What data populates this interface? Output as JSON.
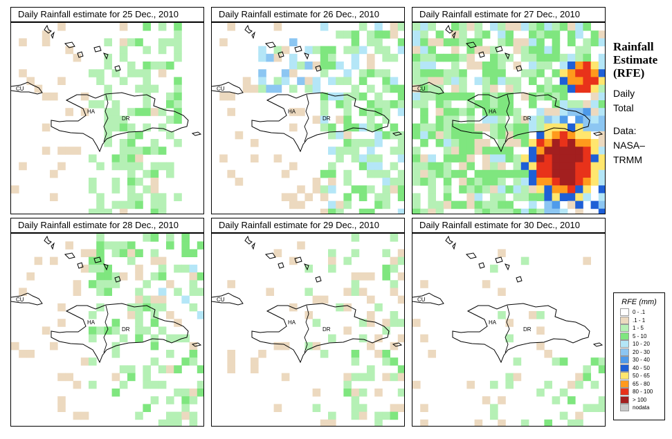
{
  "panels": [
    {
      "title": "Daily Rainfall estimate for  25 Dec., 2010",
      "day": 25
    },
    {
      "title": "Daily Rainfall estimate for  26 Dec., 2010",
      "day": 26
    },
    {
      "title": "Daily Rainfall estimate for  27 Dec., 2010",
      "day": 27
    },
    {
      "title": "Daily Rainfall estimate for  28 Dec., 2010",
      "day": 28
    },
    {
      "title": "Daily Rainfall estimate for  29 Dec., 2010",
      "day": 29
    },
    {
      "title": "Daily Rainfall estimate for  30 Dec., 2010",
      "day": 30
    }
  ],
  "map_labels": {
    "cuba": "CU",
    "haiti": "HA",
    "dominican_republic": "DR"
  },
  "sidebar": {
    "title_line1": "Rainfall",
    "title_line2": "Estimate",
    "title_line3": "(RFE)",
    "period_line1": "Daily",
    "period_line2": "Total",
    "source_line1": "Data:",
    "source_line2": "NASA–",
    "source_line3": "TRMM"
  },
  "legend": {
    "title": "RFE (mm)",
    "items": [
      {
        "label": "0 - .1",
        "color": "#ffffff"
      },
      {
        "label": ".1 - 1",
        "color": "#ecd9bf"
      },
      {
        "label": "1 - 5",
        "color": "#b5f0b5"
      },
      {
        "label": "5 - 10",
        "color": "#7fe67f"
      },
      {
        "label": "10 - 20",
        "color": "#b4e6f7"
      },
      {
        "label": "20 - 30",
        "color": "#8cc6f2"
      },
      {
        "label": "30 - 40",
        "color": "#4f9bea"
      },
      {
        "label": "40 - 50",
        "color": "#1e5fd6"
      },
      {
        "label": "50 - 65",
        "color": "#ffe66e"
      },
      {
        "label": "65 - 80",
        "color": "#ff9a1c"
      },
      {
        "label": "80 - 100",
        "color": "#e8321a"
      },
      {
        "label": "> 100",
        "color": "#a31f1f"
      },
      {
        "label": "nodata",
        "color": "#c8c8c8"
      }
    ]
  }
}
